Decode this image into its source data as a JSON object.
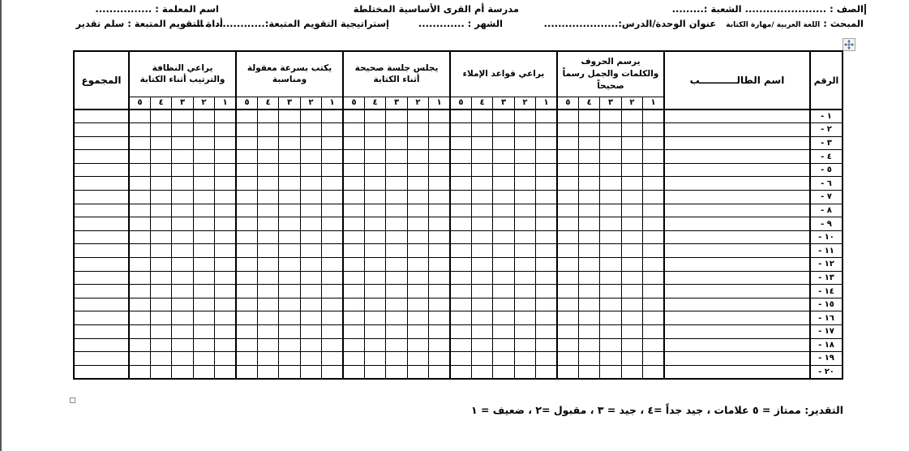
{
  "page": {
    "header": {
      "line1": {
        "class_section": "الصف : ....................... الشعبة :.........",
        "school_name": "مدرسة أم القرى الأساسية المختلطة",
        "teacher_name": "اسم المعلمة : ................"
      },
      "line2": {
        "subject_label": "المبحث : ",
        "subject_value": "اللغة العربية /مهارة الكتابة",
        "unit_lesson": "عنوان الوحدة/الدرس:.....................",
        "month": "الشهر : .............",
        "strategy": "إستراتيجية التقويم المتبعة:.........................",
        "tool": "أداة التقويم المتبعة : سلم تقدير"
      }
    },
    "table": {
      "col_number": "الرقم",
      "col_name": "اسم الطالـــــــــــب",
      "col_total": "المجموع",
      "criteria": [
        "يرسم الحروف والكلمات والجمل رسماً صحيحاً",
        "يراعي قواعد الإملاء",
        "يجلس جلسة صحيحة أثناء الكتابة",
        "يكتب بسرعة معقولة ومناسبة",
        "يراعي النظافة والترتيب أثناء الكتابة"
      ],
      "scale": [
        "١",
        "٢",
        "٣",
        "٤",
        "٥"
      ],
      "row_labels": [
        "١ -",
        "٢ -",
        "٣ -",
        "٤ -",
        "٥ -",
        "٦ -",
        "٧ -",
        "٨ -",
        "٩ -",
        "١٠ -",
        "١١ -",
        "١٢ -",
        "١٣ -",
        "١٤ -",
        "١٥ -",
        "١٦ -",
        "١٧ -",
        "١٨ -",
        "١٩ -",
        "٢٠ -"
      ]
    },
    "footer": {
      "grading_key": "التقدير:  ممتاز = ٥ علامات ، جيد جداً =٤ ، جيد = ٣ ، مقبول =٢ ،  ضعيف = ١"
    },
    "icons": {
      "table_move_handle": "four-way-move-arrow",
      "table_resize_handle": "resize-square"
    },
    "colors": {
      "text": "#000000",
      "table_border": "#000000",
      "page_edge": "#595959",
      "handle_arrow": "#2b579a"
    }
  }
}
